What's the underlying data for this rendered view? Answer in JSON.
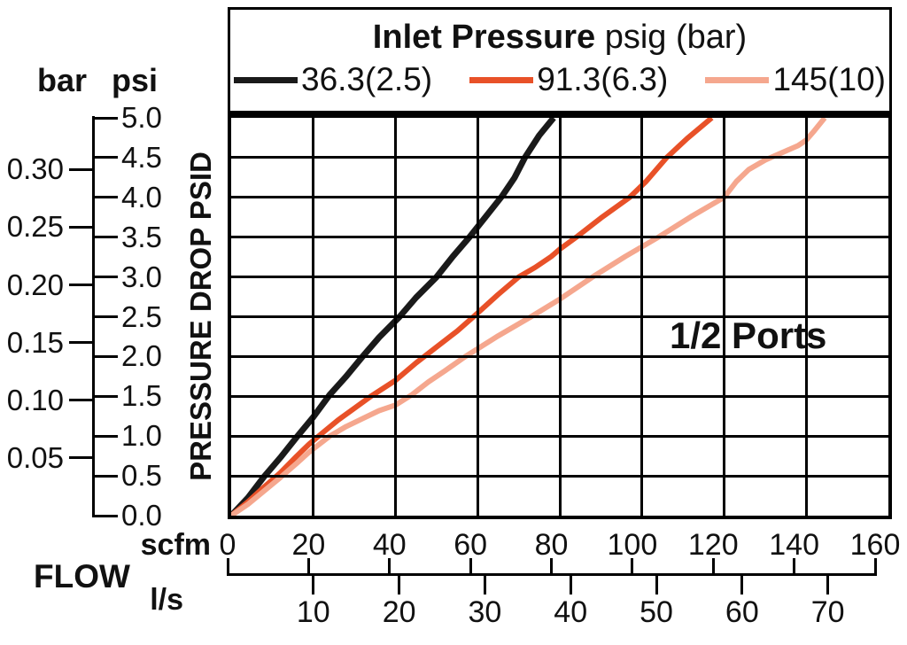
{
  "chart_data": {
    "type": "line",
    "legend": {
      "title_bold": "Inlet Pressure",
      "title_suffix": " psig (bar)",
      "position": "top"
    },
    "annotation": "1/2 Ports",
    "x_axis": {
      "label": "FLOW",
      "primary_unit": "scfm",
      "primary_ticks": [
        0,
        20,
        40,
        60,
        80,
        100,
        120,
        140,
        160
      ],
      "secondary_unit": "l/s",
      "secondary_ticks": [
        10,
        20,
        30,
        40,
        50,
        60,
        70
      ],
      "scfm_range": [
        0,
        160
      ],
      "scfm_per_ls": 2.1189
    },
    "y_axis": {
      "label": "PRESSURE DROP PSID",
      "primary_unit": "psi",
      "primary_ticks": [
        "0.0",
        "0.5",
        "1.0",
        "1.5",
        "2.0",
        "2.5",
        "3.0",
        "3.5",
        "4.0",
        "4.5",
        "5.0"
      ],
      "secondary_unit": "bar",
      "secondary_ticks": [
        "0.05",
        "0.10",
        "0.15",
        "0.20",
        "0.25",
        "0.30"
      ],
      "psi_range": [
        0,
        5
      ],
      "psi_per_bar": 14.5038
    },
    "grid": {
      "x_step_scfm": 20,
      "y_step_psi": 0.5
    },
    "series": [
      {
        "name": "36.3(2.5)",
        "inlet_pressure_psig": 36.3,
        "inlet_pressure_bar": 2.5,
        "color": "#1a1a1a",
        "points": [
          [
            0,
            0
          ],
          [
            4,
            0.22
          ],
          [
            8,
            0.49
          ],
          [
            12,
            0.73
          ],
          [
            16,
            0.99
          ],
          [
            20,
            1.24
          ],
          [
            24,
            1.52
          ],
          [
            28,
            1.75
          ],
          [
            32,
            2.0
          ],
          [
            36,
            2.24
          ],
          [
            41,
            2.5
          ],
          [
            45,
            2.74
          ],
          [
            50,
            3.0
          ],
          [
            54,
            3.26
          ],
          [
            58,
            3.5
          ],
          [
            62,
            3.76
          ],
          [
            66,
            4.02
          ],
          [
            69,
            4.25
          ],
          [
            71.5,
            4.5
          ],
          [
            75,
            4.78
          ],
          [
            78.5,
            5.0
          ]
        ]
      },
      {
        "name": "91.3(6.3)",
        "inlet_pressure_psig": 91.3,
        "inlet_pressure_bar": 6.3,
        "color": "#e85128",
        "points": [
          [
            0,
            0
          ],
          [
            4,
            0.17
          ],
          [
            8,
            0.36
          ],
          [
            12,
            0.54
          ],
          [
            16,
            0.75
          ],
          [
            19,
            0.9
          ],
          [
            22,
            1.03
          ],
          [
            26,
            1.2
          ],
          [
            30,
            1.35
          ],
          [
            34,
            1.5
          ],
          [
            40,
            1.7
          ],
          [
            45,
            1.92
          ],
          [
            50,
            2.12
          ],
          [
            55,
            2.32
          ],
          [
            59,
            2.5
          ],
          [
            65,
            2.78
          ],
          [
            70,
            3.0
          ],
          [
            74,
            3.12
          ],
          [
            78,
            3.26
          ],
          [
            80,
            3.35
          ],
          [
            84,
            3.5
          ],
          [
            90,
            3.74
          ],
          [
            97,
            4.0
          ],
          [
            101,
            4.2
          ],
          [
            106,
            4.5
          ],
          [
            111,
            4.74
          ],
          [
            117,
            5.0
          ]
        ]
      },
      {
        "name": "145(10)",
        "inlet_pressure_psig": 145,
        "inlet_pressure_bar": 10,
        "color": "#f5a78e",
        "points": [
          [
            0,
            0
          ],
          [
            4,
            0.14
          ],
          [
            8,
            0.31
          ],
          [
            12,
            0.48
          ],
          [
            16,
            0.66
          ],
          [
            19,
            0.8
          ],
          [
            24,
            1.0
          ],
          [
            28,
            1.12
          ],
          [
            32,
            1.22
          ],
          [
            36,
            1.32
          ],
          [
            40,
            1.39
          ],
          [
            44,
            1.52
          ],
          [
            48,
            1.68
          ],
          [
            52,
            1.82
          ],
          [
            57,
            2.0
          ],
          [
            65,
            2.26
          ],
          [
            73,
            2.5
          ],
          [
            80,
            2.72
          ],
          [
            88,
            3.0
          ],
          [
            96,
            3.26
          ],
          [
            104,
            3.5
          ],
          [
            112,
            3.76
          ],
          [
            120,
            4.0
          ],
          [
            123,
            4.2
          ],
          [
            126,
            4.35
          ],
          [
            130,
            4.47
          ],
          [
            134,
            4.56
          ],
          [
            138,
            4.65
          ],
          [
            140,
            4.72
          ],
          [
            142,
            4.84
          ],
          [
            144.5,
            5.0
          ]
        ]
      }
    ]
  }
}
